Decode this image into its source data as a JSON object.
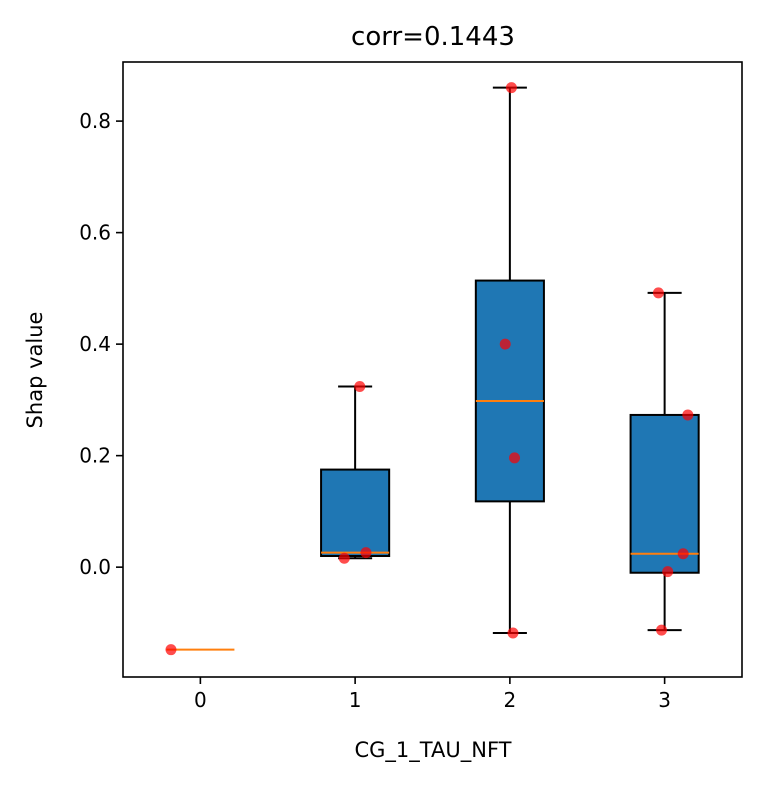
{
  "chart_data": {
    "type": "box",
    "title": "corr=0.1443",
    "xlabel": "CG_1_TAU_NFT",
    "ylabel": "Shap value",
    "xlim": [
      -0.5,
      3.5
    ],
    "ylim": [
      -0.197,
      0.906
    ],
    "x_ticks": [
      "0",
      "1",
      "2",
      "3"
    ],
    "y_ticks": [
      "0.0",
      "0.2",
      "0.4",
      "0.6",
      "0.8"
    ],
    "grid": false,
    "box_color": "#1f77b4",
    "median_color": "#ff7f0e",
    "point_color": "#ff0000",
    "boxes": [
      {
        "category": "0",
        "min": -0.148,
        "q1": -0.148,
        "median": -0.148,
        "q3": -0.148,
        "max": -0.148
      },
      {
        "category": "1",
        "min": 0.016,
        "q1": 0.02,
        "median": 0.026,
        "q3": 0.175,
        "max": 0.324
      },
      {
        "category": "2",
        "min": -0.118,
        "q1": 0.118,
        "median": 0.298,
        "q3": 0.514,
        "max": 0.86
      },
      {
        "category": "3",
        "min": -0.113,
        "q1": -0.01,
        "median": 0.024,
        "q3": 0.273,
        "max": 0.492
      }
    ],
    "points": [
      {
        "x": -0.19,
        "y": -0.148
      },
      {
        "x": 0.93,
        "y": 0.016
      },
      {
        "x": 1.07,
        "y": 0.026
      },
      {
        "x": 1.03,
        "y": 0.324
      },
      {
        "x": 2.01,
        "y": 0.86
      },
      {
        "x": 1.97,
        "y": 0.4
      },
      {
        "x": 2.03,
        "y": 0.196
      },
      {
        "x": 2.02,
        "y": -0.118
      },
      {
        "x": 2.96,
        "y": 0.492
      },
      {
        "x": 3.15,
        "y": 0.273
      },
      {
        "x": 3.12,
        "y": 0.024
      },
      {
        "x": 3.02,
        "y": -0.008
      },
      {
        "x": 2.98,
        "y": -0.113
      }
    ]
  }
}
